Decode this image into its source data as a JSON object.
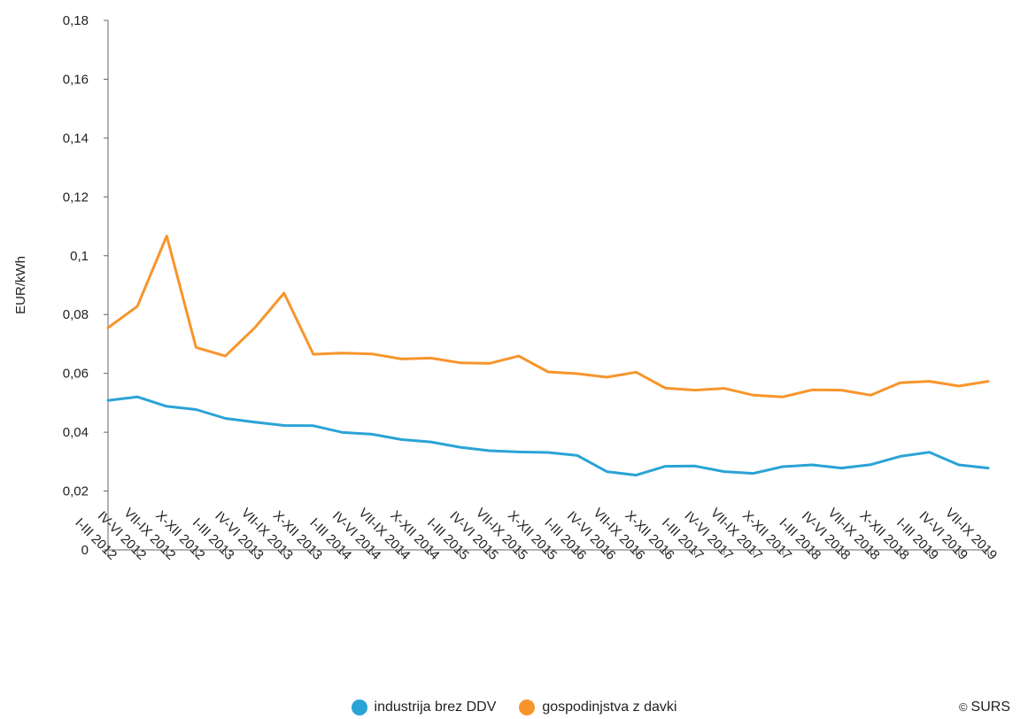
{
  "credit": "SURS",
  "legend": [
    {
      "label": "industrija brez DDV",
      "color": "#2aa3d6"
    },
    {
      "label": "gospodinjstva z davki",
      "color": "#f7952b"
    }
  ],
  "chart_data": {
    "type": "line",
    "ylabel": "EUR/kWh",
    "ylim": [
      0,
      0.18
    ],
    "yticks": [
      "0",
      "0,02",
      "0,04",
      "0,06",
      "0,08",
      "0,1",
      "0,12",
      "0,14",
      "0,16",
      "0,18"
    ],
    "grid": false,
    "legend_position": "bottom",
    "categories": [
      "I-III 2012",
      "IV-VI 2012",
      "VII-IX 2012",
      "X-XII 2012",
      "I-III 2013",
      "IV-VI 2013",
      "VII-IX 2013",
      "X-XII 2013",
      "I-III 2014",
      "IV-VI 2014",
      "VII-IX 2014",
      "X-XII 2014",
      "I-III 2015",
      "IV-VI 2015",
      "VII-IX 2015",
      "X-XII 2015",
      "I-III 2016",
      "IV-VI 2016",
      "VII-IX 2016",
      "X-XII 2016",
      "I-III 2017",
      "IV-VI 2017",
      "VII-IX 2017",
      "X-XII 2017",
      "I-III 2018",
      "IV-VI 2018",
      "VII-IX 2018",
      "X-XII 2018",
      "I-III 2019",
      "IV-VI 2019",
      "VII-IX 2019"
    ],
    "series": [
      {
        "name": "industrija brez DDV",
        "color": "#2aa3d6",
        "values": [
          0.0508,
          0.052,
          0.0488,
          0.0477,
          0.0447,
          0.0434,
          0.0423,
          0.0422,
          0.0399,
          0.0393,
          0.0375,
          0.0367,
          0.0349,
          0.0337,
          0.0333,
          0.0331,
          0.0321,
          0.0266,
          0.0254,
          0.0284,
          0.0285,
          0.0266,
          0.026,
          0.0283,
          0.0289,
          0.0278,
          0.029,
          0.0318,
          0.0332,
          0.0289,
          0.0278
        ]
      },
      {
        "name": "gospodinjstva z davki",
        "color": "#f7952b",
        "values": [
          0.0755,
          0.0828,
          0.1067,
          0.0688,
          0.0659,
          0.0755,
          0.0873,
          0.0665,
          0.0669,
          0.0666,
          0.0649,
          0.0652,
          0.0636,
          0.0634,
          0.0659,
          0.0605,
          0.0599,
          0.0587,
          0.0604,
          0.055,
          0.0543,
          0.0549,
          0.0526,
          0.052,
          0.0544,
          0.0543,
          0.0526,
          0.0568,
          0.0573,
          0.0557,
          0.0573
        ]
      }
    ]
  }
}
